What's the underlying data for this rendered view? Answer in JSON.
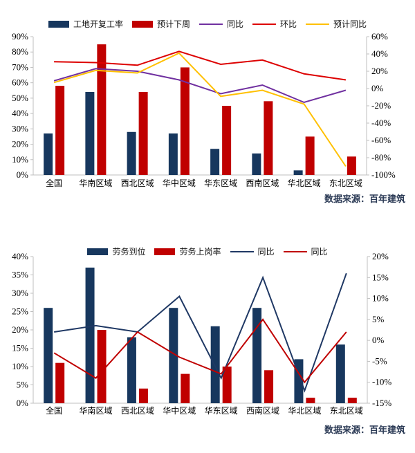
{
  "page": {
    "background": "#ffffff"
  },
  "chart_data": [
    {
      "type": "bar+line",
      "title": "",
      "categories": [
        "全国",
        "华南区域",
        "西北区域",
        "华中区域",
        "华东区域",
        "西南区域",
        "华北区域",
        "东北区域"
      ],
      "bar_series": [
        {
          "name": "工地开复工率",
          "color": "#17375E",
          "axis": "left",
          "values": [
            27,
            54,
            28,
            27,
            17,
            14,
            3,
            0
          ]
        },
        {
          "name": "预计下周",
          "color": "#C00000",
          "axis": "left",
          "values": [
            58,
            85,
            54,
            70,
            45,
            48,
            25,
            12
          ]
        }
      ],
      "line_series": [
        {
          "name": "同比",
          "color": "#7030A0",
          "axis": "right",
          "values": [
            9,
            23,
            20,
            10,
            -6,
            4,
            -16,
            -2
          ]
        },
        {
          "name": "环比",
          "color": "#DD0000",
          "axis": "right",
          "values": [
            31,
            30,
            27,
            43,
            28,
            33,
            17,
            10
          ]
        },
        {
          "name": "预计同比",
          "color": "#FFC000",
          "axis": "right",
          "values": [
            7,
            21,
            18,
            41,
            -9,
            -2,
            -18,
            -90
          ]
        }
      ],
      "left_axis": {
        "min": 0,
        "max": 90,
        "step": 10,
        "unit": "%"
      },
      "right_axis": {
        "min": -100,
        "max": 60,
        "step": 20,
        "unit": "%"
      },
      "legend_position": "top",
      "grid": false,
      "source": "数据来源：百年建筑"
    },
    {
      "type": "bar+line",
      "title": "",
      "categories": [
        "全国",
        "华南区域",
        "西北区域",
        "华中区域",
        "华东区域",
        "西南区域",
        "华北区域",
        "东北区域"
      ],
      "bar_series": [
        {
          "name": "劳务到位",
          "color": "#17375E",
          "axis": "left",
          "values": [
            26,
            37,
            18,
            26,
            21,
            26,
            12,
            16
          ]
        },
        {
          "name": "劳务上岗率",
          "color": "#C00000",
          "axis": "left",
          "values": [
            11,
            20,
            4,
            8,
            10,
            9,
            1.5,
            1.5
          ]
        }
      ],
      "line_series": [
        {
          "name": "同比",
          "color": "#1F3864",
          "axis": "right",
          "values": [
            2,
            3.5,
            2,
            10.5,
            -9,
            15,
            -12,
            16
          ]
        },
        {
          "name": "同比",
          "color": "#C00000",
          "axis": "right",
          "values": [
            -3,
            -9,
            2,
            -4,
            -8,
            5,
            -10,
            2
          ]
        }
      ],
      "left_axis": {
        "min": 0,
        "max": 40,
        "step": 5,
        "unit": "%"
      },
      "right_axis": {
        "min": -15,
        "max": 20,
        "step": 5,
        "unit": "%"
      },
      "legend_position": "top",
      "grid": false,
      "source": "数据来源：百年建筑"
    }
  ]
}
